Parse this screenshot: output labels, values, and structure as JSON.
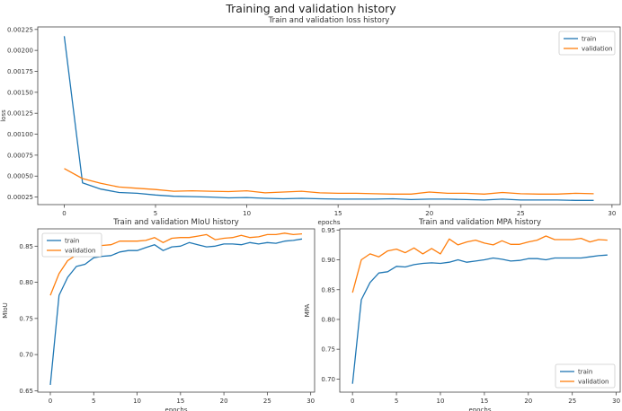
{
  "suptitle": "Training and validation history",
  "colors": {
    "train": "#1f77b4",
    "validation": "#ff7f0e"
  },
  "chart_data": [
    {
      "type": "line",
      "title": "Train and validation loss history",
      "xlabel": "epochs",
      "ylabel": "loss",
      "xlim": [
        -1.45,
        30.45
      ],
      "ylim": [
        0.00016,
        0.00228
      ],
      "xticks": [
        0,
        5,
        10,
        15,
        20,
        25,
        30
      ],
      "yticks": [
        0.00025,
        0.0005,
        0.00075,
        0.001,
        0.00125,
        0.0015,
        0.00175,
        0.002,
        0.00225
      ],
      "ytick_labels": [
        "0.00025",
        "0.00050",
        "0.00075",
        "0.00100",
        "0.00125",
        "0.00150",
        "0.00175",
        "0.00200",
        "0.00225"
      ],
      "legend": "top-right",
      "x": [
        0,
        1,
        2,
        3,
        4,
        5,
        6,
        7,
        8,
        9,
        10,
        11,
        12,
        13,
        14,
        15,
        16,
        17,
        18,
        19,
        20,
        21,
        22,
        23,
        24,
        25,
        26,
        27,
        28,
        29
      ],
      "series": [
        {
          "name": "train",
          "values": [
            0.00217,
            0.00042,
            0.000345,
            0.000305,
            0.000295,
            0.000275,
            0.00026,
            0.000255,
            0.00025,
            0.00024,
            0.000245,
            0.000235,
            0.00023,
            0.000235,
            0.00023,
            0.000225,
            0.000225,
            0.000225,
            0.00023,
            0.00022,
            0.000225,
            0.000225,
            0.00022,
            0.000215,
            0.000225,
            0.000215,
            0.000215,
            0.000215,
            0.00021,
            0.00021
          ]
        },
        {
          "name": "validation",
          "values": [
            0.00059,
            0.00047,
            0.000415,
            0.00037,
            0.000355,
            0.00034,
            0.00032,
            0.000325,
            0.00032,
            0.000315,
            0.000325,
            0.0003,
            0.00031,
            0.00032,
            0.0003,
            0.000295,
            0.000295,
            0.00029,
            0.000285,
            0.000285,
            0.00031,
            0.000295,
            0.000295,
            0.000285,
            0.000305,
            0.00029,
            0.000285,
            0.000285,
            0.000295,
            0.00029
          ]
        }
      ]
    },
    {
      "type": "line",
      "title": "Train and validation MIoU history",
      "xlabel": "epochs",
      "ylabel": "MIoU",
      "xlim": [
        -1.45,
        30.45
      ],
      "ylim": [
        0.648,
        0.874
      ],
      "xticks": [
        0,
        5,
        10,
        15,
        20,
        25,
        30
      ],
      "yticks": [
        0.65,
        0.7,
        0.75,
        0.8,
        0.85
      ],
      "ytick_labels": [
        "0.65",
        "0.70",
        "0.75",
        "0.80",
        "0.85"
      ],
      "legend": "top-left",
      "x": [
        0,
        1,
        2,
        3,
        4,
        5,
        6,
        7,
        8,
        9,
        10,
        11,
        12,
        13,
        14,
        15,
        16,
        17,
        18,
        19,
        20,
        21,
        22,
        23,
        24,
        25,
        26,
        27,
        28,
        29
      ],
      "series": [
        {
          "name": "train",
          "values": [
            0.658,
            0.782,
            0.807,
            0.822,
            0.825,
            0.834,
            0.836,
            0.837,
            0.842,
            0.844,
            0.844,
            0.848,
            0.852,
            0.844,
            0.849,
            0.85,
            0.855,
            0.852,
            0.849,
            0.85,
            0.853,
            0.853,
            0.852,
            0.855,
            0.853,
            0.855,
            0.854,
            0.857,
            0.858,
            0.86
          ]
        },
        {
          "name": "validation",
          "values": [
            0.782,
            0.812,
            0.83,
            0.838,
            0.839,
            0.85,
            0.851,
            0.852,
            0.857,
            0.857,
            0.857,
            0.858,
            0.862,
            0.855,
            0.861,
            0.862,
            0.862,
            0.864,
            0.866,
            0.859,
            0.861,
            0.862,
            0.865,
            0.862,
            0.863,
            0.866,
            0.866,
            0.868,
            0.866,
            0.867
          ]
        }
      ]
    },
    {
      "type": "line",
      "title": "Train and validation MPA history",
      "xlabel": "epochs",
      "ylabel": "MPA",
      "xlim": [
        -1.45,
        30.45
      ],
      "ylim": [
        0.678,
        0.952
      ],
      "xticks": [
        0,
        5,
        10,
        15,
        20,
        25,
        30
      ],
      "yticks": [
        0.7,
        0.75,
        0.8,
        0.85,
        0.9,
        0.95
      ],
      "ytick_labels": [
        "0.70",
        "0.75",
        "0.80",
        "0.85",
        "0.90",
        "0.95"
      ],
      "legend": "bottom-right",
      "x": [
        0,
        1,
        2,
        3,
        4,
        5,
        6,
        7,
        8,
        9,
        10,
        11,
        12,
        13,
        14,
        15,
        16,
        17,
        18,
        19,
        20,
        21,
        22,
        23,
        24,
        25,
        26,
        27,
        28,
        29
      ],
      "series": [
        {
          "name": "train",
          "values": [
            0.692,
            0.833,
            0.862,
            0.878,
            0.88,
            0.889,
            0.888,
            0.892,
            0.894,
            0.895,
            0.894,
            0.896,
            0.9,
            0.896,
            0.898,
            0.9,
            0.903,
            0.901,
            0.898,
            0.899,
            0.902,
            0.902,
            0.9,
            0.903,
            0.903,
            0.903,
            0.903,
            0.905,
            0.907,
            0.908
          ]
        },
        {
          "name": "validation",
          "values": [
            0.845,
            0.9,
            0.91,
            0.905,
            0.915,
            0.918,
            0.912,
            0.92,
            0.91,
            0.919,
            0.91,
            0.935,
            0.925,
            0.93,
            0.933,
            0.928,
            0.925,
            0.932,
            0.926,
            0.926,
            0.93,
            0.933,
            0.94,
            0.934,
            0.934,
            0.934,
            0.936,
            0.93,
            0.934,
            0.933
          ]
        }
      ]
    }
  ]
}
